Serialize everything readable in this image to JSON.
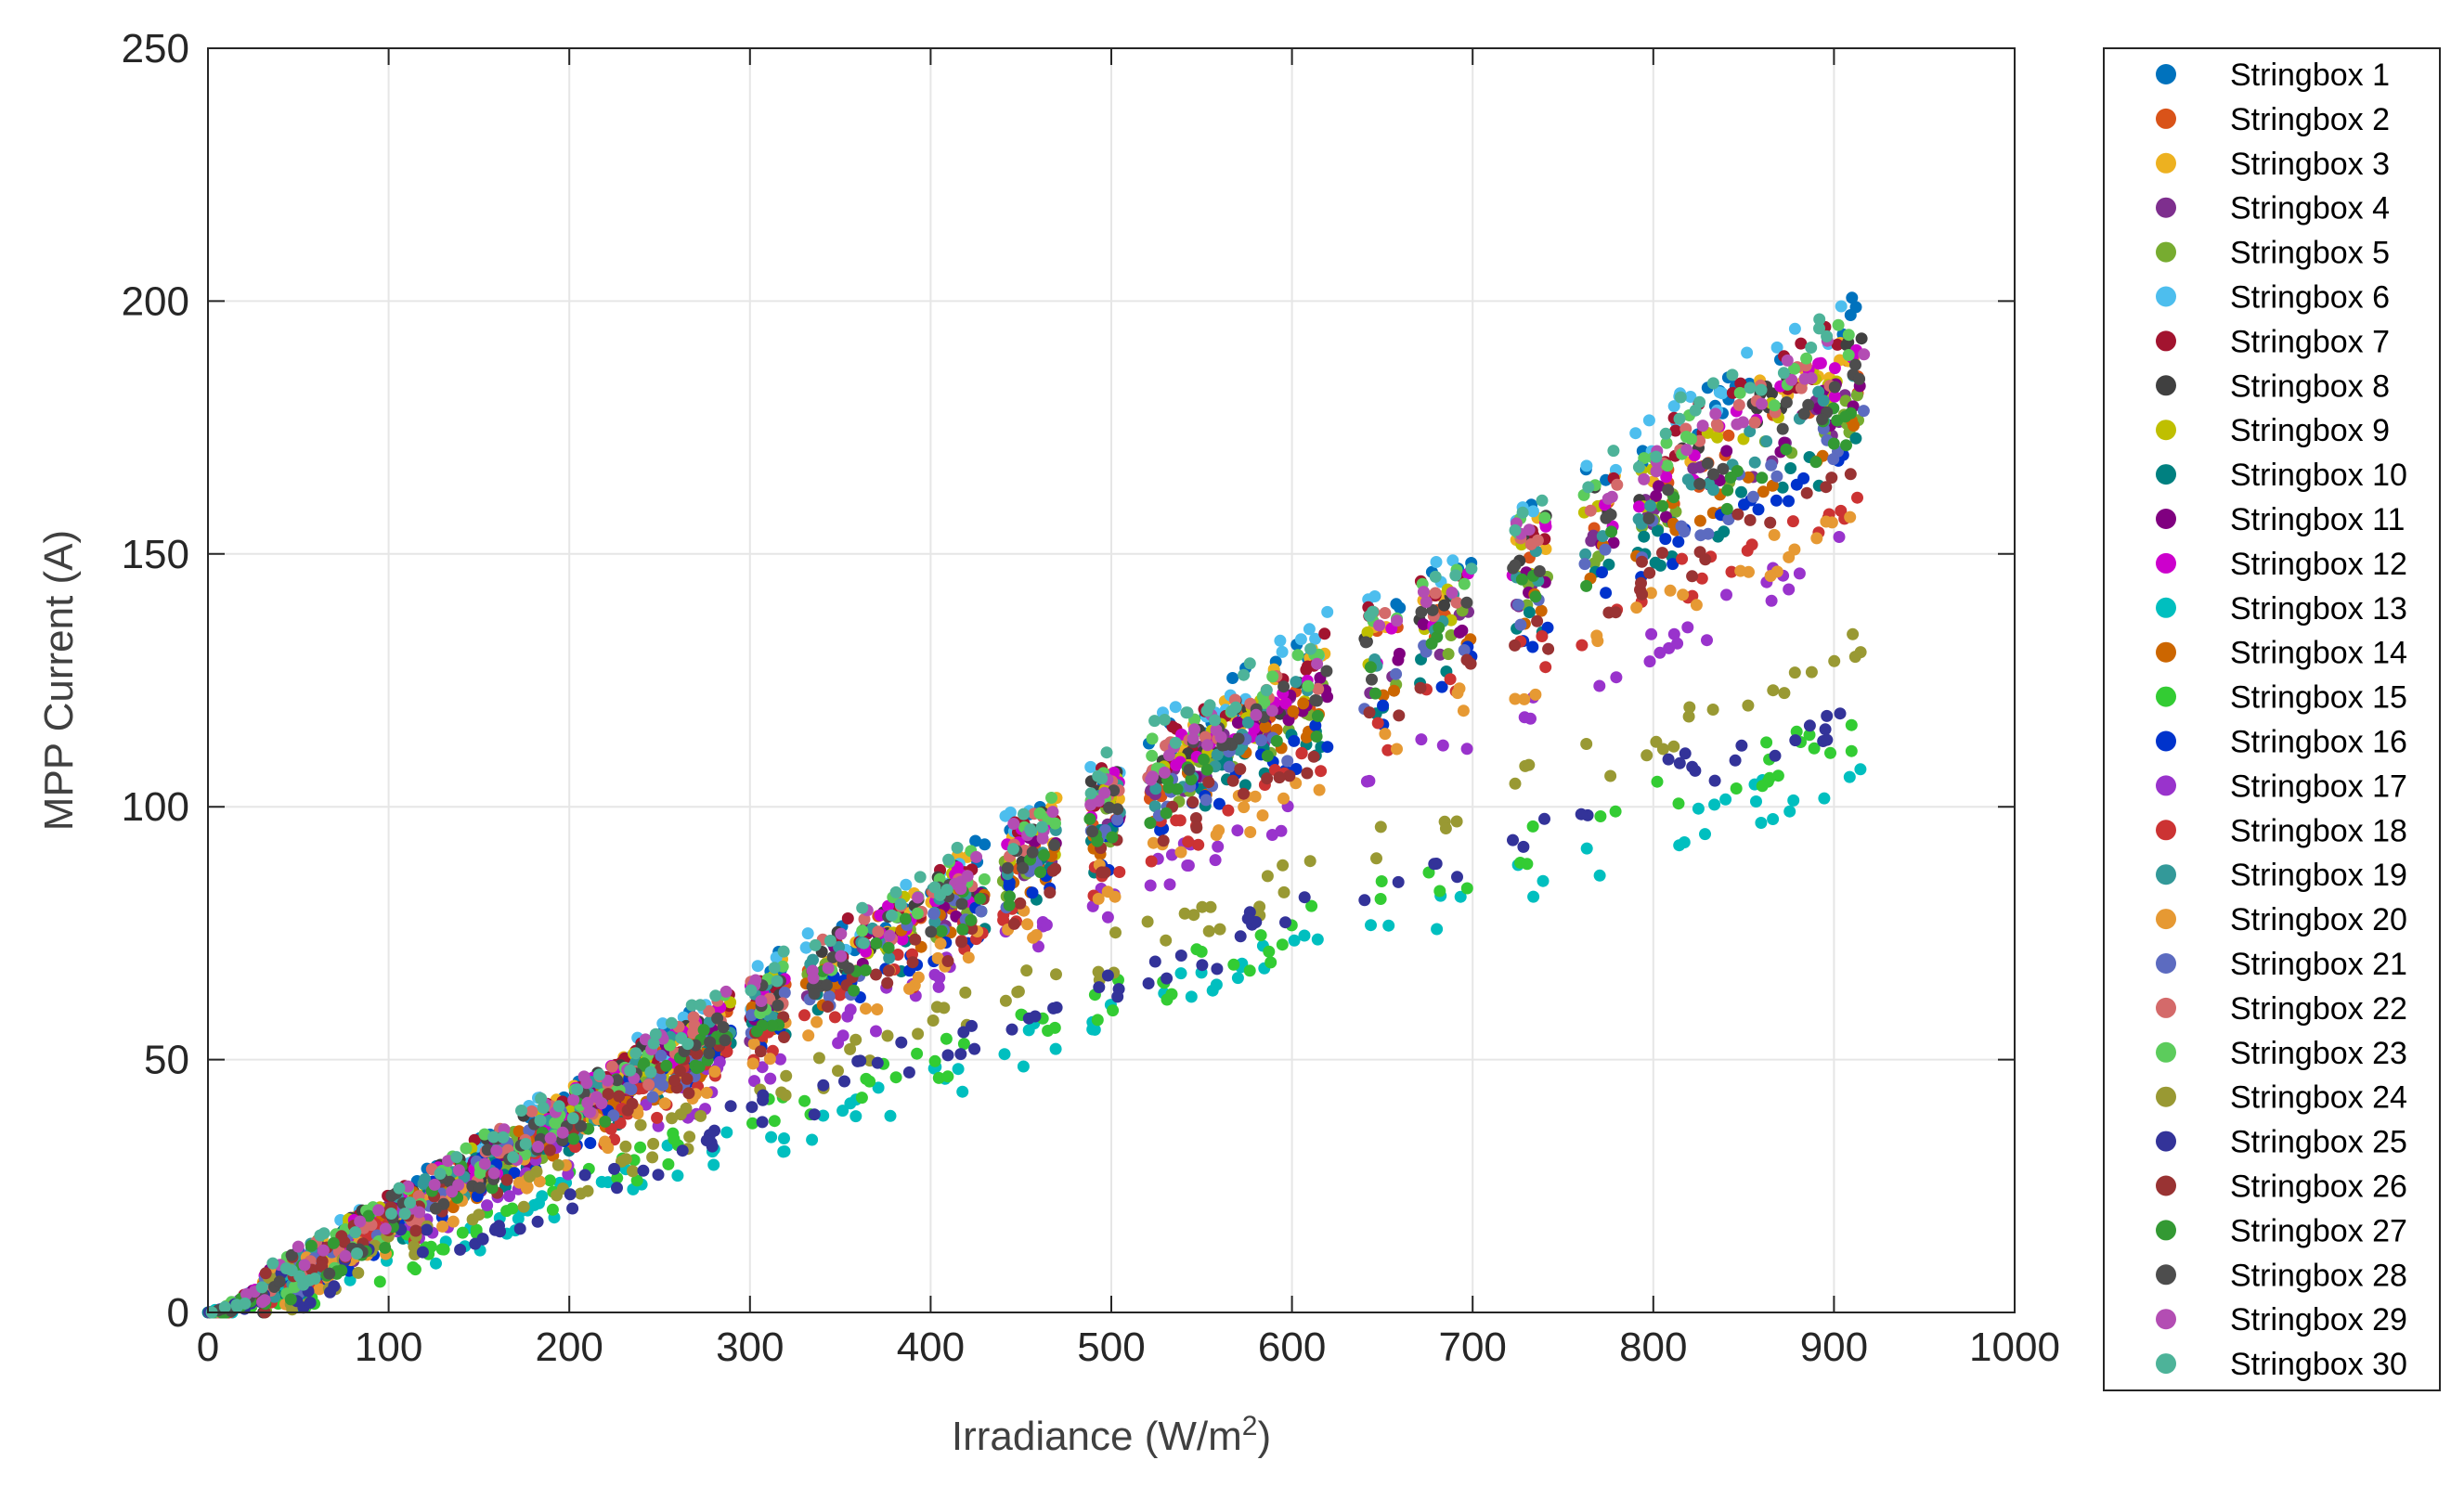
{
  "chart_data": {
    "type": "scatter",
    "title": "",
    "xlabel": "Irradiance (W/m",
    "xlabel_sup": "2",
    "xlabel_end": ")",
    "ylabel": "MPP Current (A)",
    "xlim": [
      0,
      1000
    ],
    "ylim": [
      0,
      250
    ],
    "x_ticks": [
      0,
      100,
      200,
      300,
      400,
      500,
      600,
      700,
      800,
      900,
      1000
    ],
    "y_ticks": [
      0,
      50,
      100,
      150,
      200,
      250
    ],
    "grid": true,
    "legend_position": "outside-right",
    "series": [
      {
        "name": "Stringbox 1",
        "color": "#0072BD",
        "slope": 0.218
      },
      {
        "name": "Stringbox 2",
        "color": "#D95319",
        "slope": 0.205
      },
      {
        "name": "Stringbox 3",
        "color": "#EDB120",
        "slope": 0.212
      },
      {
        "name": "Stringbox 4",
        "color": "#7E2F8E",
        "slope": 0.2
      },
      {
        "name": "Stringbox 5",
        "color": "#77AC30",
        "slope": 0.198
      },
      {
        "name": "Stringbox 6",
        "color": "#4DBEEE",
        "slope": 0.22
      },
      {
        "name": "Stringbox 7",
        "color": "#A2142F",
        "slope": 0.215
      },
      {
        "name": "Stringbox 8",
        "color": "#404040",
        "slope": 0.21
      },
      {
        "name": "Stringbox 9",
        "color": "#BFBF00",
        "slope": 0.207
      },
      {
        "name": "Stringbox 10",
        "color": "#008080",
        "slope": 0.19
      },
      {
        "name": "Stringbox 11",
        "color": "#800080",
        "slope": 0.202
      },
      {
        "name": "Stringbox 12",
        "color": "#CC00CC",
        "slope": 0.208
      },
      {
        "name": "Stringbox 13",
        "color": "#00BFBF",
        "slope": 0.12
      },
      {
        "name": "Stringbox 14",
        "color": "#CC6600",
        "slope": 0.195
      },
      {
        "name": "Stringbox 15",
        "color": "#33CC33",
        "slope": 0.128
      },
      {
        "name": "Stringbox 16",
        "color": "#0033CC",
        "slope": 0.188
      },
      {
        "name": "Stringbox 17",
        "color": "#9933CC",
        "slope": 0.168
      },
      {
        "name": "Stringbox 18",
        "color": "#CC3333",
        "slope": 0.18
      },
      {
        "name": "Stringbox 19",
        "color": "#339999",
        "slope": 0.203
      },
      {
        "name": "Stringbox 20",
        "color": "#E69933",
        "slope": 0.175
      },
      {
        "name": "Stringbox 21",
        "color": "#5C6BC0",
        "slope": 0.193
      },
      {
        "name": "Stringbox 22",
        "color": "#D46A6A",
        "slope": 0.211
      },
      {
        "name": "Stringbox 23",
        "color": "#5CCC5C",
        "slope": 0.214
      },
      {
        "name": "Stringbox 24",
        "color": "#999933",
        "slope": 0.145
      },
      {
        "name": "Stringbox 25",
        "color": "#333399",
        "slope": 0.133
      },
      {
        "name": "Stringbox 26",
        "color": "#993333",
        "slope": 0.185
      },
      {
        "name": "Stringbox 27",
        "color": "#339933",
        "slope": 0.196
      },
      {
        "name": "Stringbox 28",
        "color": "#4D4D4D",
        "slope": 0.204
      },
      {
        "name": "Stringbox 29",
        "color": "#B34DB3",
        "slope": 0.213
      },
      {
        "name": "Stringbox 30",
        "color": "#4DB399",
        "slope": 0.219
      }
    ]
  }
}
